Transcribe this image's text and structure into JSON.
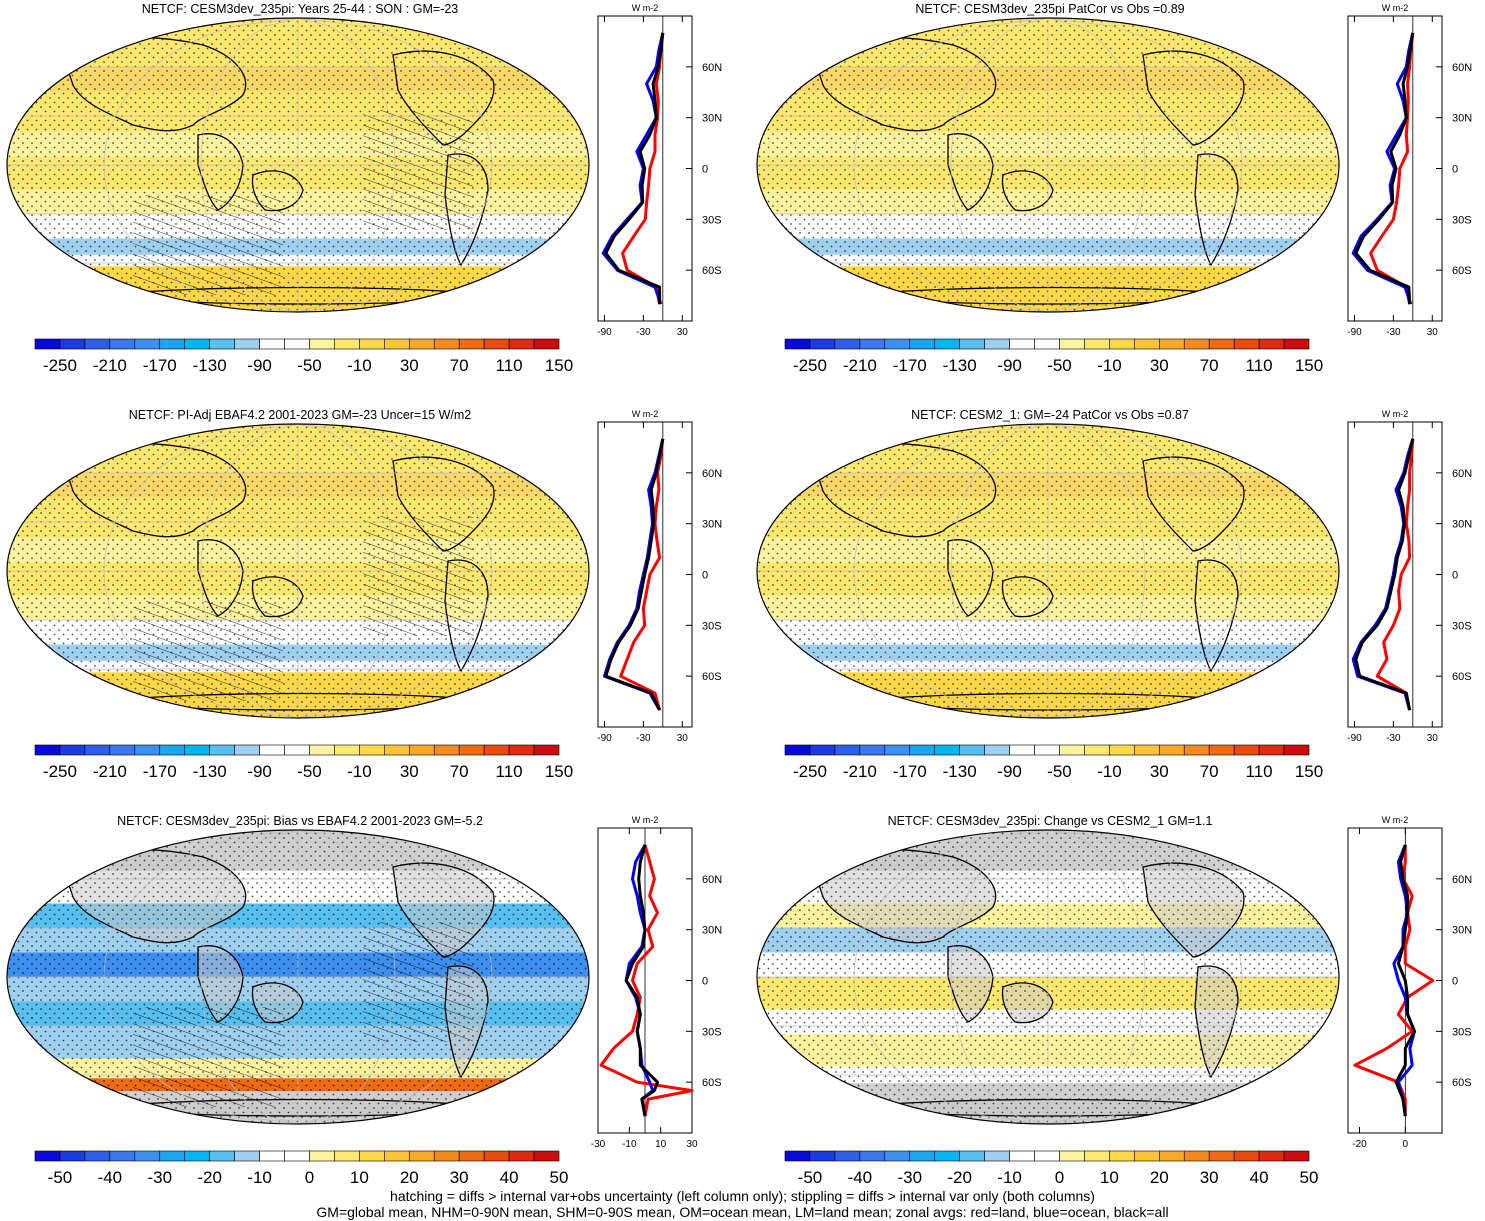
{
  "footer": {
    "line1": "hatching = diffs > internal var+obs uncertainty (left column only); stippling = diffs > internal var only (both columns)",
    "line2": "GM=global mean, NHM=0-90N mean, SHM=0-90S mean, OM=ocean mean, LM=land mean; zonal avgs: red=land, blue=ocean, black=all"
  },
  "zonal_units": "W m-2",
  "lat_labels": [
    "60N",
    "30N",
    "0",
    "30S",
    "60S"
  ],
  "colors": {
    "land_line": "#ff0000",
    "ocean_line": "#0000ff",
    "all_line": "#000000",
    "missing_land": "#c8c8c8"
  },
  "colorbars": {
    "full": {
      "labels": [
        "-250",
        "-210",
        "-170",
        "-130",
        "-90",
        "-50",
        "-10",
        "30",
        "70",
        "110",
        "150"
      ],
      "colors": [
        "#0a0adc",
        "#1a3be0",
        "#2f5ee8",
        "#3b77ee",
        "#3d8ff0",
        "#1aa6f0",
        "#00b7f0",
        "#58c0f0",
        "#9fd0f0",
        "#ffffff",
        "#ffffff",
        "#fff3a0",
        "#ffe870",
        "#ffd84a",
        "#fcc436",
        "#f9a828",
        "#f58a1e",
        "#f06a14",
        "#e84a10",
        "#dd2a10",
        "#cc0d0d"
      ]
    },
    "diff": {
      "labels": [
        "-50",
        "-40",
        "-30",
        "-20",
        "-10",
        "0",
        "10",
        "20",
        "30",
        "40",
        "50"
      ],
      "colors": [
        "#0a0adc",
        "#1a3be0",
        "#2f5ee8",
        "#3b77ee",
        "#3d8ff0",
        "#1aa6f0",
        "#00b7f0",
        "#58c0f0",
        "#9fd0f0",
        "#ffffff",
        "#ffffff",
        "#fff3a0",
        "#ffe870",
        "#ffd84a",
        "#fcc436",
        "#f9a828",
        "#f58a1e",
        "#f06a14",
        "#e84a10",
        "#dd2a10",
        "#cc0d0d"
      ]
    }
  },
  "chart_data": [
    {
      "type": "heatmap",
      "title": "NETCF: CESM3dev_235pi: Years 25-44 : SON : GM=-23",
      "colorbar": "full",
      "zonal": {
        "xticks": [
          "-90",
          "-30",
          "30"
        ],
        "xlim": [
          -100,
          45
        ],
        "lat": [
          80,
          70,
          60,
          50,
          40,
          30,
          20,
          10,
          0,
          -10,
          -20,
          -30,
          -40,
          -50,
          -60,
          -70,
          -80
        ],
        "land": [
          0,
          -3,
          -5,
          -10,
          -7,
          -8,
          -12,
          -12,
          -20,
          -22,
          -25,
          -27,
          -45,
          -62,
          -55,
          -10,
          -5
        ],
        "ocean": [
          0,
          -6,
          -10,
          -25,
          -15,
          -10,
          -25,
          -40,
          -30,
          -35,
          -32,
          -55,
          -78,
          -92,
          -70,
          -12,
          -3
        ],
        "all": [
          0,
          -3,
          -7,
          -15,
          -12,
          -10,
          -20,
          -35,
          -28,
          -32,
          -31,
          -52,
          -75,
          -88,
          -68,
          -5,
          -5
        ]
      }
    },
    {
      "type": "heatmap",
      "title": "NETCF: CESM3dev_235pi PatCor vs Obs =0.89",
      "colorbar": "full",
      "zonal": {
        "xticks": [
          "-90",
          "-30",
          "30"
        ],
        "xlim": [
          -100,
          45
        ],
        "lat": [
          80,
          70,
          60,
          50,
          40,
          30,
          20,
          10,
          0,
          -10,
          -20,
          -30,
          -40,
          -50,
          -60,
          -70,
          -80
        ],
        "land": [
          0,
          -3,
          -5,
          -8,
          -7,
          -8,
          -10,
          -8,
          -20,
          -22,
          -25,
          -30,
          -48,
          -65,
          -55,
          -10,
          -5
        ],
        "ocean": [
          0,
          -6,
          -10,
          -24,
          -15,
          -10,
          -25,
          -40,
          -28,
          -35,
          -32,
          -55,
          -80,
          -92,
          -70,
          -12,
          -3
        ],
        "all": [
          0,
          -4,
          -8,
          -15,
          -12,
          -10,
          -20,
          -34,
          -26,
          -32,
          -31,
          -52,
          -76,
          -88,
          -66,
          -6,
          -5
        ]
      }
    },
    {
      "type": "heatmap",
      "title": "NETCF: PI-Adj EBAF4.2 2001-2023 GM=-23 Uncer=15 W/m2",
      "colorbar": "full",
      "zonal": {
        "xticks": [
          "-90",
          "-30",
          "30"
        ],
        "xlim": [
          -100,
          45
        ],
        "lat": [
          80,
          70,
          60,
          50,
          40,
          30,
          20,
          10,
          0,
          -10,
          -20,
          -30,
          -40,
          -50,
          -60,
          -70,
          -80
        ],
        "land": [
          0,
          -3,
          -8,
          -6,
          -10,
          -12,
          -9,
          -5,
          -20,
          -25,
          -30,
          -28,
          -45,
          -55,
          -65,
          -12,
          -5
        ],
        "ocean": [
          0,
          -6,
          -12,
          -22,
          -18,
          -16,
          -20,
          -24,
          -30,
          -36,
          -40,
          -52,
          -70,
          -82,
          -90,
          -20,
          -5
        ],
        "all": [
          0,
          -5,
          -10,
          -18,
          -15,
          -14,
          -18,
          -22,
          -28,
          -33,
          -38,
          -50,
          -68,
          -80,
          -88,
          -18,
          -5
        ]
      }
    },
    {
      "type": "heatmap",
      "title": "NETCF: CESM2_1: GM=-24 PatCor vs Obs =0.87",
      "colorbar": "full",
      "zonal": {
        "xticks": [
          "-90",
          "-30",
          "30"
        ],
        "xlim": [
          -100,
          45
        ],
        "lat": [
          80,
          70,
          60,
          50,
          40,
          30,
          20,
          10,
          0,
          -10,
          -20,
          -30,
          -40,
          -50,
          -60,
          -70,
          -80
        ],
        "land": [
          0,
          -2,
          -5,
          -5,
          -8,
          -10,
          -6,
          -5,
          -18,
          -22,
          -20,
          -30,
          -45,
          -40,
          -55,
          -10,
          -5
        ],
        "ocean": [
          0,
          -8,
          -14,
          -26,
          -18,
          -14,
          -18,
          -26,
          -30,
          -36,
          -42,
          -58,
          -80,
          -92,
          -85,
          -12,
          -5
        ],
        "all": [
          0,
          -6,
          -12,
          -22,
          -15,
          -13,
          -16,
          -24,
          -28,
          -34,
          -40,
          -55,
          -78,
          -88,
          -82,
          -10,
          -5
        ]
      }
    },
    {
      "type": "heatmap",
      "title": "NETCF: CESM3dev_235pi: Bias vs EBAF4.2 2001-2023  GM=-5.2",
      "colorbar": "diff",
      "zonal": {
        "xticks": [
          "-30",
          "-10",
          "10",
          "30"
        ],
        "xlim": [
          -30,
          30
        ],
        "lat": [
          80,
          70,
          60,
          50,
          40,
          30,
          20,
          10,
          0,
          -10,
          -20,
          -30,
          -40,
          -50,
          -60,
          -65,
          -70,
          -80
        ],
        "land": [
          0,
          3,
          6,
          3,
          8,
          2,
          5,
          -5,
          -8,
          -3,
          -5,
          -8,
          -20,
          -28,
          -5,
          30,
          2,
          0
        ],
        "ocean": [
          0,
          -6,
          -8,
          -5,
          -3,
          0,
          -2,
          -10,
          -12,
          -6,
          -3,
          -5,
          -3,
          -2,
          3,
          5,
          -2,
          0
        ],
        "all": [
          0,
          -3,
          -4,
          -3,
          -1,
          0,
          -1,
          -8,
          -12,
          -5,
          -3,
          -5,
          -3,
          -3,
          8,
          6,
          -2,
          0
        ]
      }
    },
    {
      "type": "heatmap",
      "title": "NETCF: CESM3dev_235pi: Change vs CESM2_1 GM=1.1",
      "colorbar": "diff",
      "zonal": {
        "xticks": [
          "-20",
          "0"
        ],
        "xlim": [
          -25,
          16
        ],
        "lat": [
          80,
          70,
          60,
          50,
          40,
          30,
          20,
          10,
          0,
          -10,
          -20,
          -30,
          -40,
          -50,
          -60,
          -70,
          -80
        ],
        "land": [
          0,
          0,
          -1,
          3,
          1,
          2,
          0,
          0,
          12,
          1,
          -3,
          3,
          -8,
          -22,
          -3,
          0,
          0
        ],
        "ocean": [
          0,
          -3,
          -2,
          0,
          1,
          -1,
          -1,
          -5,
          -3,
          0,
          1,
          4,
          2,
          3,
          -3,
          -1,
          0
        ],
        "all": [
          0,
          -2,
          -1,
          1,
          1,
          0,
          -1,
          -3,
          0,
          1,
          1,
          4,
          0,
          0,
          -4,
          -1,
          0
        ]
      }
    }
  ]
}
